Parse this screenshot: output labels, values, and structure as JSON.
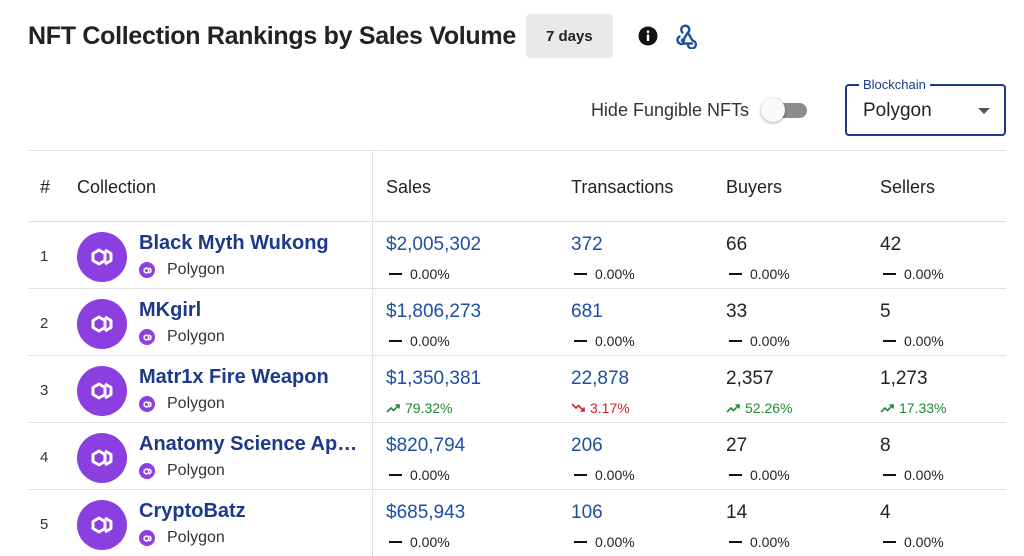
{
  "header": {
    "title": "NFT Collection Rankings by Sales Volume",
    "period": "7 days",
    "info_icon": "info-icon",
    "webhook_icon": "webhook-icon"
  },
  "controls": {
    "toggle_label": "Hide Fungible NFTs",
    "toggle_on": false,
    "blockchain_legend": "Blockchain",
    "blockchain_value": "Polygon"
  },
  "table": {
    "columns": {
      "rank": "#",
      "collection": "Collection",
      "sales": "Sales",
      "transactions": "Transactions",
      "buyers": "Buyers",
      "sellers": "Sellers"
    },
    "rows": [
      {
        "rank": "1",
        "name": "Black Myth Wukong",
        "chain": "Polygon",
        "sales": "$2,005,302",
        "sales_change": "0.00%",
        "sales_trend": "flat",
        "transactions": "372",
        "transactions_change": "0.00%",
        "transactions_trend": "flat",
        "buyers": "66",
        "buyers_change": "0.00%",
        "buyers_trend": "flat",
        "sellers": "42",
        "sellers_change": "0.00%",
        "sellers_trend": "flat"
      },
      {
        "rank": "2",
        "name": "MKgirl",
        "chain": "Polygon",
        "sales": "$1,806,273",
        "sales_change": "0.00%",
        "sales_trend": "flat",
        "transactions": "681",
        "transactions_change": "0.00%",
        "transactions_trend": "flat",
        "buyers": "33",
        "buyers_change": "0.00%",
        "buyers_trend": "flat",
        "sellers": "5",
        "sellers_change": "0.00%",
        "sellers_trend": "flat"
      },
      {
        "rank": "3",
        "name": "Matr1x Fire Weapon",
        "chain": "Polygon",
        "sales": "$1,350,381",
        "sales_change": "79.32%",
        "sales_trend": "up",
        "transactions": "22,878",
        "transactions_change": "3.17%",
        "transactions_trend": "down",
        "buyers": "2,357",
        "buyers_change": "52.26%",
        "buyers_trend": "up",
        "sellers": "1,273",
        "sellers_change": "17.33%",
        "sellers_trend": "up"
      },
      {
        "rank": "4",
        "name": "Anatomy Science Ape ...",
        "chain": "Polygon",
        "sales": "$820,794",
        "sales_change": "0.00%",
        "sales_trend": "flat",
        "transactions": "206",
        "transactions_change": "0.00%",
        "transactions_trend": "flat",
        "buyers": "27",
        "buyers_change": "0.00%",
        "buyers_trend": "flat",
        "sellers": "8",
        "sellers_change": "0.00%",
        "sellers_trend": "flat"
      },
      {
        "rank": "5",
        "name": "CryptoBatz",
        "chain": "Polygon",
        "sales": "$685,943",
        "sales_change": "0.00%",
        "sales_trend": "flat",
        "transactions": "106",
        "transactions_change": "0.00%",
        "transactions_trend": "flat",
        "buyers": "14",
        "buyers_change": "0.00%",
        "buyers_trend": "flat",
        "sellers": "4",
        "sellers_change": "0.00%",
        "sellers_trend": "flat"
      }
    ]
  },
  "colors": {
    "link": "#1d4fa6",
    "brand_purple": "#8b3fe0",
    "up": "#1f8a2e",
    "down": "#d32020",
    "select_border": "#1d3a8a"
  }
}
